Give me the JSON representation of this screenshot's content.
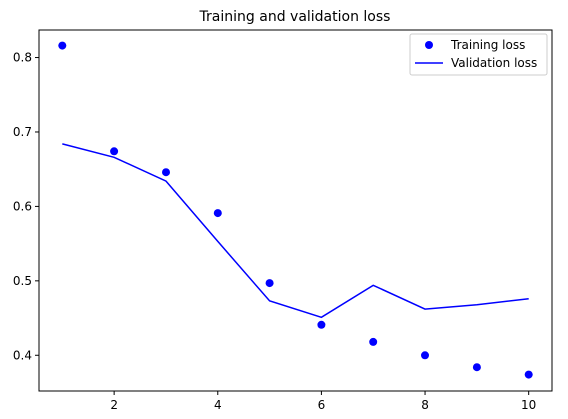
{
  "chart_data": {
    "type": "line",
    "title": "Training and validation loss",
    "xlabel": "",
    "ylabel": "",
    "xlim": [
      0.55,
      10.45
    ],
    "ylim": [
      0.352,
      0.837
    ],
    "xticks": [
      2,
      4,
      6,
      8,
      10
    ],
    "yticks": [
      0.4,
      0.5,
      0.6,
      0.7,
      0.8
    ],
    "grid": false,
    "legend_position": "top-right",
    "series": [
      {
        "name": "Training loss",
        "style": "markers",
        "color": "#0000ff",
        "x": [
          1,
          2,
          3,
          4,
          5,
          6,
          7,
          8,
          9,
          10
        ],
        "values": [
          0.816,
          0.674,
          0.646,
          0.591,
          0.497,
          0.441,
          0.418,
          0.4,
          0.384,
          0.374
        ]
      },
      {
        "name": "Validation loss",
        "style": "line",
        "color": "#0000ff",
        "x": [
          1,
          2,
          3,
          4,
          5,
          6,
          7,
          8,
          9,
          10
        ],
        "values": [
          0.684,
          0.666,
          0.634,
          0.553,
          0.473,
          0.451,
          0.494,
          0.462,
          0.468,
          0.476
        ]
      }
    ]
  }
}
